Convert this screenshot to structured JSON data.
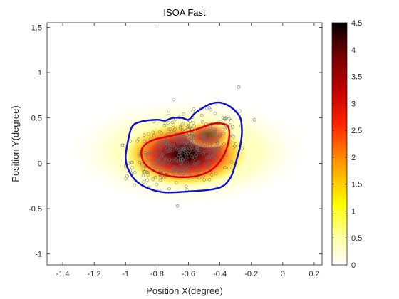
{
  "chart_data": {
    "type": "scatter",
    "title": "ISOA Fast",
    "xlabel": "Position X(degree)",
    "ylabel": "Position Y(degree)",
    "xlim": [
      -1.5,
      0.25
    ],
    "ylim": [
      -1.12,
      1.55
    ],
    "xticks": [
      -1.4,
      -1.2,
      -1,
      -0.8,
      -0.6,
      -0.4,
      -0.2,
      0,
      0.2
    ],
    "xtick_labels": [
      "-1.4",
      "-1.2",
      "-1",
      "-0.8",
      "-0.6",
      "-0.4",
      "-0.2",
      "0",
      "0.2"
    ],
    "yticks": [
      -1,
      -0.5,
      0,
      0.5,
      1,
      1.5
    ],
    "ytick_labels": [
      "-1",
      "-0.5",
      "0",
      "0.5",
      "1",
      "1.5"
    ],
    "grid": false,
    "colorbar": {
      "colormap": "hot",
      "range": [
        0,
        4.5
      ],
      "ticks": [
        0,
        0.5,
        1,
        1.5,
        2,
        2.5,
        3,
        3.5,
        4,
        4.5
      ],
      "tick_labels": [
        "0",
        "0.5",
        "1",
        "1.5",
        "2",
        "2.5",
        "3",
        "3.5",
        "4",
        "4.5"
      ]
    },
    "density_peak": {
      "x": -0.62,
      "y": 0.1
    },
    "contours": [
      {
        "color": "#1010d0",
        "points": [
          [
            -1.0,
            0.05
          ],
          [
            -0.99,
            0.2
          ],
          [
            -0.96,
            0.4
          ],
          [
            -0.9,
            0.46
          ],
          [
            -0.8,
            0.48
          ],
          [
            -0.75,
            0.47
          ],
          [
            -0.7,
            0.5
          ],
          [
            -0.64,
            0.5
          ],
          [
            -0.6,
            0.48
          ],
          [
            -0.56,
            0.55
          ],
          [
            -0.5,
            0.62
          ],
          [
            -0.45,
            0.66
          ],
          [
            -0.4,
            0.67
          ],
          [
            -0.35,
            0.64
          ],
          [
            -0.31,
            0.59
          ],
          [
            -0.27,
            0.5
          ],
          [
            -0.26,
            0.35
          ],
          [
            -0.27,
            0.2
          ],
          [
            -0.3,
            0.0
          ],
          [
            -0.33,
            -0.15
          ],
          [
            -0.38,
            -0.25
          ],
          [
            -0.46,
            -0.29
          ],
          [
            -0.6,
            -0.31
          ],
          [
            -0.75,
            -0.32
          ],
          [
            -0.85,
            -0.28
          ],
          [
            -0.93,
            -0.2
          ],
          [
            -0.98,
            -0.08
          ],
          [
            -1.0,
            0.05
          ]
        ]
      },
      {
        "color": "#e00000",
        "points": [
          [
            -0.9,
            0.12
          ],
          [
            -0.88,
            0.2
          ],
          [
            -0.82,
            0.26
          ],
          [
            -0.72,
            0.3
          ],
          [
            -0.62,
            0.34
          ],
          [
            -0.54,
            0.38
          ],
          [
            -0.46,
            0.43
          ],
          [
            -0.4,
            0.44
          ],
          [
            -0.35,
            0.41
          ],
          [
            -0.34,
            0.3
          ],
          [
            -0.36,
            0.15
          ],
          [
            -0.4,
            0.02
          ],
          [
            -0.46,
            -0.08
          ],
          [
            -0.55,
            -0.14
          ],
          [
            -0.68,
            -0.15
          ],
          [
            -0.8,
            -0.1
          ],
          [
            -0.88,
            0.0
          ],
          [
            -0.9,
            0.12
          ]
        ]
      }
    ]
  }
}
